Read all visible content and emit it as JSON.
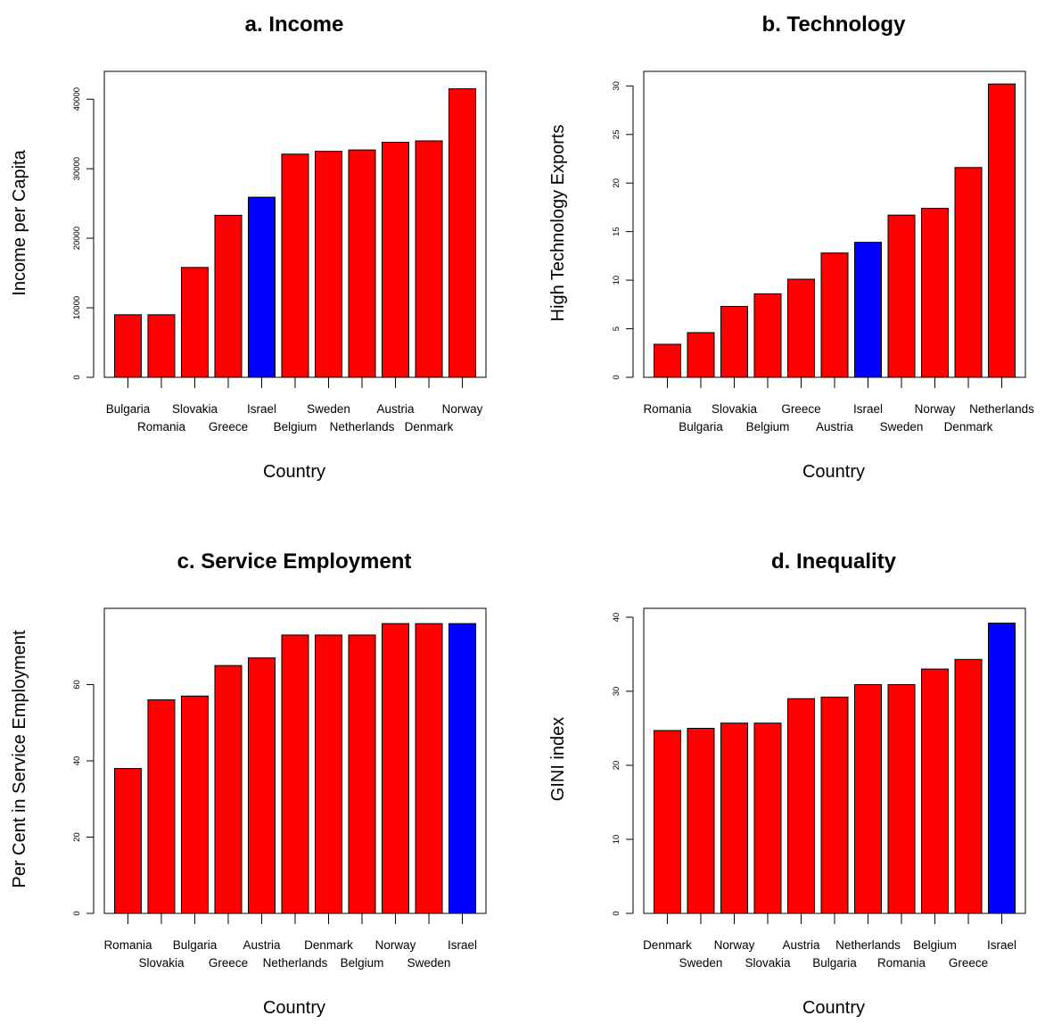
{
  "chart_data": [
    {
      "type": "bar",
      "title": "a. Income",
      "xlabel": "Country",
      "ylabel": "Income per Capita",
      "categories": [
        "Bulgaria",
        "Romania",
        "Slovakia",
        "Greece",
        "Israel",
        "Belgium",
        "Sweden",
        "Netherlands",
        "Austria",
        "Denmark",
        "Norway"
      ],
      "values": [
        9000,
        9000,
        15800,
        23300,
        25900,
        32100,
        32500,
        32700,
        33800,
        34000,
        41500
      ],
      "highlight": "Israel",
      "ylim": [
        0,
        44000
      ],
      "yticks": [
        "0",
        "10000",
        "20000",
        "30000",
        "40000"
      ],
      "ytick_values": [
        0,
        10000,
        20000,
        30000,
        40000
      ]
    },
    {
      "type": "bar",
      "title": "b. Technology",
      "xlabel": "Country",
      "ylabel": "High Technology Exports",
      "categories": [
        "Romania",
        "Bulgaria",
        "Slovakia",
        "Belgium",
        "Greece",
        "Austria",
        "Israel",
        "Sweden",
        "Norway",
        "Denmark",
        "Netherlands"
      ],
      "values": [
        3.4,
        4.6,
        7.3,
        8.6,
        10.1,
        12.8,
        13.9,
        16.7,
        17.4,
        21.6,
        30.2
      ],
      "highlight": "Israel",
      "ylim": [
        0,
        31.5
      ],
      "yticks": [
        "0",
        "5",
        "10",
        "15",
        "20",
        "25",
        "30"
      ],
      "ytick_values": [
        0,
        5,
        10,
        15,
        20,
        25,
        30
      ]
    },
    {
      "type": "bar",
      "title": "c. Service Employment",
      "xlabel": "Country",
      "ylabel": "Per Cent in Service Employment",
      "categories": [
        "Romania",
        "Slovakia",
        "Bulgaria",
        "Greece",
        "Austria",
        "Netherlands",
        "Denmark",
        "Belgium",
        "Norway",
        "Sweden",
        "Israel"
      ],
      "values": [
        38,
        56,
        57,
        65,
        67,
        73,
        73,
        73,
        76,
        76,
        76
      ],
      "highlight": "Israel",
      "ylim": [
        0,
        80
      ],
      "yticks": [
        "0",
        "20",
        "40",
        "60"
      ],
      "ytick_values": [
        0,
        20,
        40,
        60
      ]
    },
    {
      "type": "bar",
      "title": "d. Inequality",
      "xlabel": "Country",
      "ylabel": "GINI index",
      "categories": [
        "Denmark",
        "Sweden",
        "Norway",
        "Slovakia",
        "Austria",
        "Bulgaria",
        "Netherlands",
        "Romania",
        "Belgium",
        "Greece",
        "Israel"
      ],
      "values": [
        24.7,
        25.0,
        25.7,
        25.7,
        29.0,
        29.2,
        30.9,
        30.9,
        33.0,
        34.3,
        39.2
      ],
      "highlight": "Israel",
      "ylim": [
        0,
        41.2
      ],
      "yticks": [
        "0",
        "10",
        "20",
        "30",
        "40"
      ],
      "ytick_values": [
        0,
        10,
        20,
        30,
        40
      ]
    }
  ],
  "colors": {
    "bar": "#ff0000",
    "highlight": "#0000ff",
    "outline": "#000000"
  }
}
